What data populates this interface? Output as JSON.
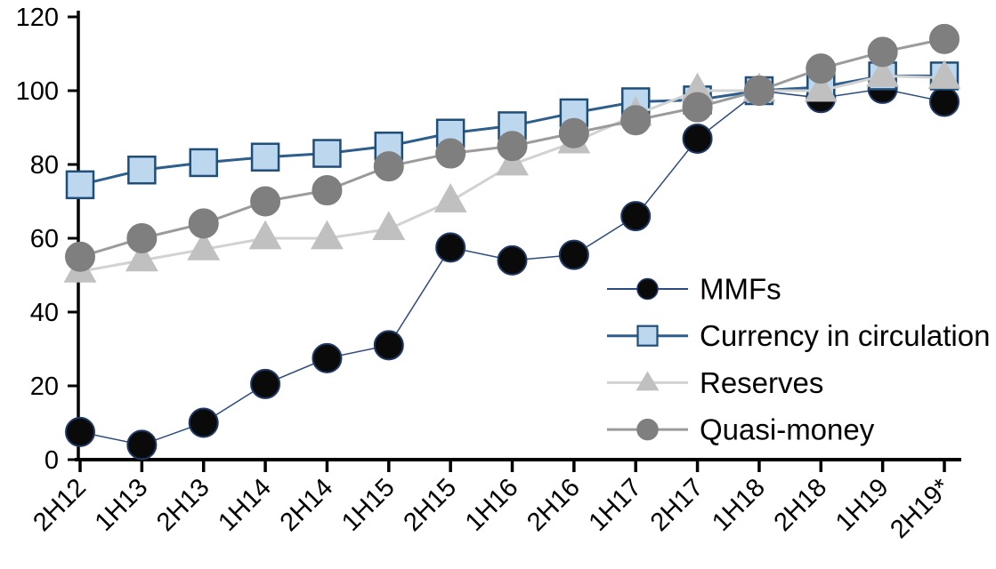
{
  "chart_data": {
    "type": "line",
    "title": "",
    "xlabel": "",
    "ylabel": "",
    "ylim": [
      0,
      120
    ],
    "yticks": [
      0,
      20,
      40,
      60,
      80,
      100,
      120
    ],
    "grid": false,
    "legend_position": "inside-right",
    "categories": [
      "2H12",
      "1H13",
      "2H13",
      "1H14",
      "2H14",
      "1H15",
      "2H15",
      "1H16",
      "2H16",
      "1H17",
      "2H17",
      "1H18",
      "2H18",
      "1H19",
      "2H19*"
    ],
    "series": [
      {
        "name": "MMFs",
        "marker": "circle",
        "marker_fill": "#0a0a0a",
        "marker_stroke": "#1F3864",
        "line_color": "#2B4A7D",
        "line_width": 1.5,
        "values": [
          7.5,
          4,
          10,
          20.5,
          27.5,
          31,
          57.5,
          54,
          55.5,
          66,
          87,
          100,
          98,
          100.5,
          97
        ]
      },
      {
        "name": "Currency in circulation",
        "marker": "square",
        "marker_fill": "#BDD7EE",
        "marker_stroke": "#1F4E79",
        "line_color": "#2E5E8C",
        "line_width": 3,
        "values": [
          74.5,
          78.5,
          80.5,
          82,
          83,
          85,
          88.5,
          90.5,
          94,
          97,
          97.5,
          100,
          101,
          104,
          104
        ]
      },
      {
        "name": "Reserves",
        "marker": "triangle",
        "marker_fill": "#C0C0C0",
        "marker_stroke": "#C0C0C0",
        "line_color": "#D2D2D2",
        "line_width": 3,
        "values": [
          51,
          54,
          57,
          60,
          60,
          62.5,
          70,
          80,
          86,
          93.5,
          100,
          100,
          100,
          104,
          103.5
        ]
      },
      {
        "name": "Quasi-money",
        "marker": "circle",
        "marker_fill": "#7F7F7F",
        "marker_stroke": "#7F7F7F",
        "line_color": "#9B9B9B",
        "line_width": 3,
        "values": [
          55,
          60,
          64,
          70,
          73,
          79.5,
          83,
          85,
          88.5,
          92,
          95.5,
          100,
          106,
          110.5,
          114
        ]
      }
    ],
    "axis_color": "#000000"
  }
}
